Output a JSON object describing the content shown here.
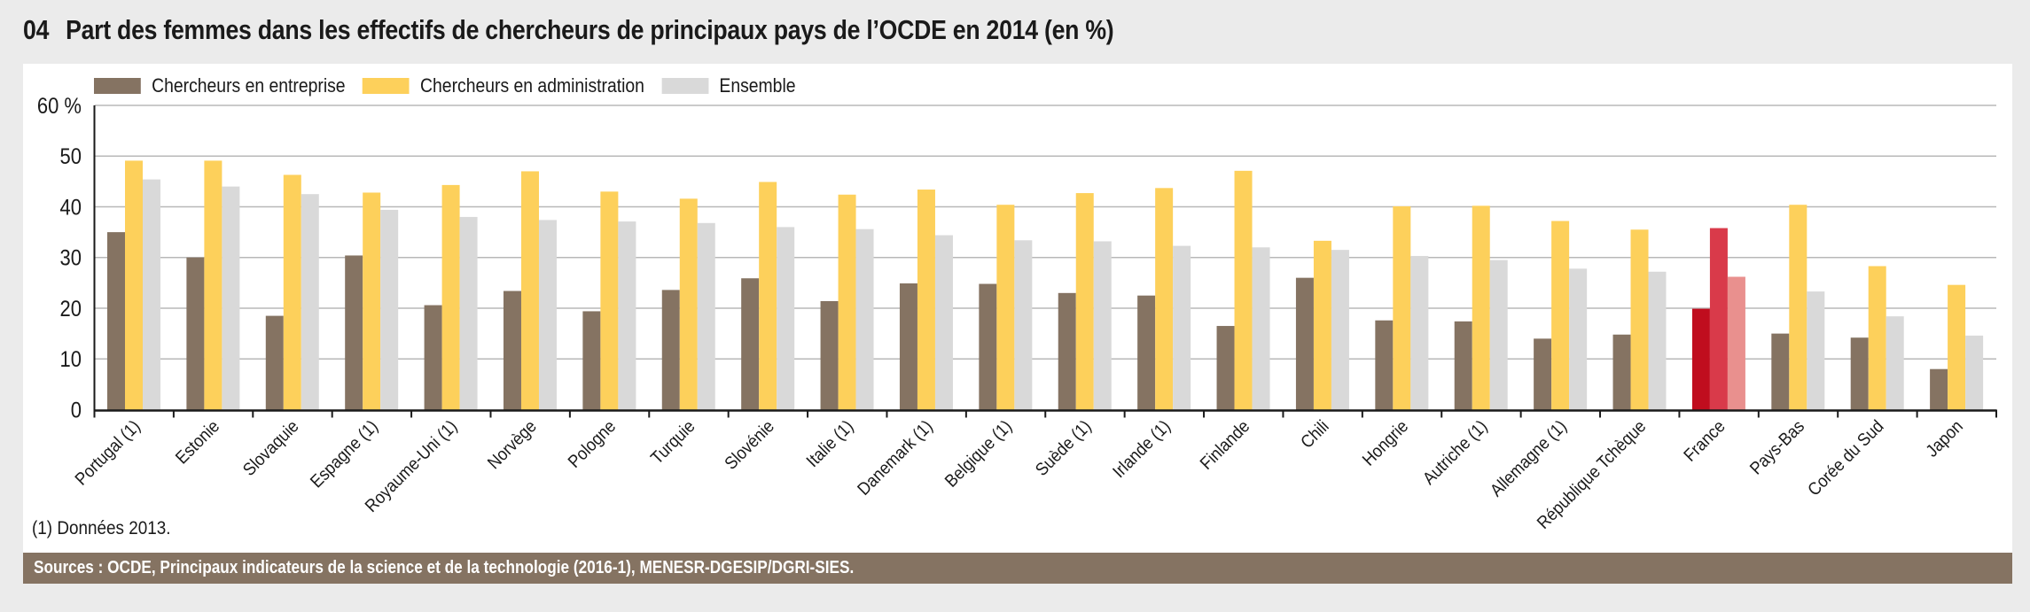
{
  "figure": {
    "number": "04",
    "title": "Part des femmes dans les effectifs de chercheurs de principaux pays de l’OCDE en 2014 (en %)",
    "note": "(1) Données 2013.",
    "source": "Sources : OCDE, Principaux indicateurs de la science et de la technologie (2016-1), MENESR-DGESIP/DGRI-SIES."
  },
  "colors": {
    "entreprise": "#857362",
    "administration": "#fdd05b",
    "ensemble": "#d9d9d9",
    "highlight_entreprise": "#c00d1e",
    "highlight_administration": "#d93a4a",
    "highlight_ensemble": "#e9908e",
    "gridline": "#b8b8b8",
    "axis": "#1a1a1a"
  },
  "chart_data": {
    "type": "bar",
    "title": "Part des femmes dans les effectifs de chercheurs de principaux pays de l’OCDE en 2014 (en %)",
    "xlabel": "",
    "ylabel": "%",
    "ylim": [
      0,
      60
    ],
    "yticks": [
      0,
      10,
      20,
      30,
      40,
      50,
      60
    ],
    "ytick_labels": [
      "0",
      "10",
      "20",
      "30",
      "40",
      "50",
      "60 %"
    ],
    "grid": true,
    "legend_position": "top-left",
    "highlight_category": "France",
    "categories": [
      "Portugal (1)",
      "Estonie",
      "Slovaquie",
      "Espagne (1)",
      "Royaume-Uni (1)",
      "Norvège",
      "Pologne",
      "Turquie",
      "Slovénie",
      "Italie (1)",
      "Danemark (1)",
      "Belgique (1)",
      "Suède (1)",
      "Irlande (1)",
      "Finlande",
      "Chili",
      "Hongrie",
      "Autriche (1)",
      "Allemagne (1)",
      "République Tchèque",
      "France",
      "Pays-Bas",
      "Corée du Sud",
      "Japon"
    ],
    "series": [
      {
        "key": "entreprise",
        "name": "Chercheurs en entreprise",
        "values": [
          35.0,
          30.0,
          18.5,
          30.4,
          20.6,
          23.4,
          19.4,
          23.6,
          25.9,
          21.4,
          24.9,
          24.8,
          23.0,
          22.5,
          16.5,
          26.0,
          17.6,
          17.4,
          14.0,
          14.8,
          19.9,
          15.0,
          14.2,
          8.0
        ]
      },
      {
        "key": "administration",
        "name": "Chercheurs en administration",
        "values": [
          49.1,
          49.1,
          46.3,
          42.8,
          44.3,
          47.0,
          43.0,
          41.6,
          44.9,
          42.4,
          43.4,
          40.4,
          42.7,
          43.7,
          47.1,
          33.3,
          40.1,
          40.2,
          37.2,
          35.5,
          35.8,
          40.4,
          28.3,
          24.6
        ]
      },
      {
        "key": "ensemble",
        "name": "Ensemble",
        "values": [
          45.4,
          44.0,
          42.5,
          39.4,
          38.0,
          37.4,
          37.1,
          36.8,
          36.0,
          35.6,
          34.4,
          33.4,
          33.2,
          32.3,
          32.0,
          31.5,
          30.3,
          29.5,
          27.8,
          27.2,
          26.2,
          23.3,
          18.4,
          14.6
        ]
      }
    ]
  }
}
